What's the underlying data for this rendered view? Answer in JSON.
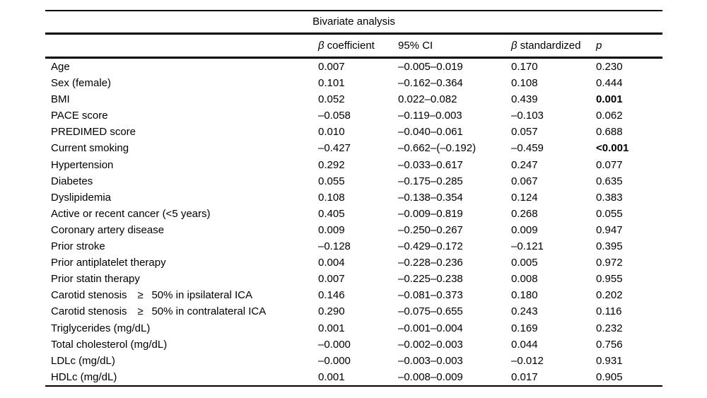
{
  "table": {
    "title": "Bivariate analysis",
    "columns": [
      {
        "symbol": "β",
        "text": "coefficient"
      },
      {
        "symbol": "",
        "text": "95% CI"
      },
      {
        "symbol": "β",
        "text": "standardized"
      },
      {
        "symbol": "p",
        "text": ""
      }
    ],
    "rows": [
      {
        "label": "Age",
        "beta": "0.007",
        "ci": "–0.005–0.019",
        "std": "0.170",
        "p": "0.230",
        "p_bold": false
      },
      {
        "label": "Sex (female)",
        "beta": "0.101",
        "ci": "–0.162–0.364",
        "std": "0.108",
        "p": "0.444",
        "p_bold": false
      },
      {
        "label": "BMI",
        "beta": "0.052",
        "ci": "0.022–0.082",
        "std": "0.439",
        "p": "0.001",
        "p_bold": true
      },
      {
        "label": "PACE score",
        "beta": "–0.058",
        "ci": "–0.119–0.003",
        "std": "–0.103",
        "p": "0.062",
        "p_bold": false
      },
      {
        "label": "PREDIMED score",
        "beta": "0.010",
        "ci": "–0.040–0.061",
        "std": "0.057",
        "p": "0.688",
        "p_bold": false
      },
      {
        "label": "Current smoking",
        "beta": "–0.427",
        "ci": "–0.662–(–0.192)",
        "std": "–0.459",
        "p": "<0.001",
        "p_bold": true
      },
      {
        "label": "Hypertension",
        "beta": "0.292",
        "ci": "–0.033–0.617",
        "std": "0.247",
        "p": "0.077",
        "p_bold": false
      },
      {
        "label": "Diabetes",
        "beta": "0.055",
        "ci": "–0.175–0.285",
        "std": "0.067",
        "p": "0.635",
        "p_bold": false
      },
      {
        "label": "Dyslipidemia",
        "beta": "0.108",
        "ci": "–0.138–0.354",
        "std": "0.124",
        "p": "0.383",
        "p_bold": false
      },
      {
        "label": "Active or recent cancer (<5 years)",
        "beta": "0.405",
        "ci": "–0.009–0.819",
        "std": "0.268",
        "p": "0.055",
        "p_bold": false
      },
      {
        "label": "Coronary artery disease",
        "beta": "0.009",
        "ci": "–0.250–0.267",
        "std": "0.009",
        "p": "0.947",
        "p_bold": false
      },
      {
        "label": "Prior stroke",
        "beta": "–0.128",
        "ci": "–0.429–0.172",
        "std": "–0.121",
        "p": "0.395",
        "p_bold": false
      },
      {
        "label": "Prior antiplatelet therapy",
        "beta": "0.004",
        "ci": "–0.228–0.236",
        "std": "0.005",
        "p": "0.972",
        "p_bold": false
      },
      {
        "label": "Prior statin therapy",
        "beta": "0.007",
        "ci": "–0.225–0.238",
        "std": "0.008",
        "p": "0.955",
        "p_bold": false
      },
      {
        "label": "Carotid stenosis ≥  50% in ipsilateral ICA",
        "beta": "0.146",
        "ci": "–0.081–0.373",
        "std": "0.180",
        "p": "0.202",
        "p_bold": false
      },
      {
        "label": "Carotid stenosis ≥  50% in contralateral ICA",
        "beta": "0.290",
        "ci": "–0.075–0.655",
        "std": "0.243",
        "p": "0.116",
        "p_bold": false
      },
      {
        "label": "Triglycerides (mg/dL)",
        "beta": "0.001",
        "ci": "–0.001–0.004",
        "std": "0.169",
        "p": "0.232",
        "p_bold": false
      },
      {
        "label": "Total cholesterol (mg/dL)",
        "beta": "–0.000",
        "ci": "–0.002–0.003",
        "std": "0.044",
        "p": "0.756",
        "p_bold": false
      },
      {
        "label": "LDLc (mg/dL)",
        "beta": "–0.000",
        "ci": "–0.003–0.003",
        "std": "–0.012",
        "p": "0.931",
        "p_bold": false
      },
      {
        "label": "HDLc (mg/dL)",
        "beta": "0.001",
        "ci": "–0.008–0.009",
        "std": "0.017",
        "p": "0.905",
        "p_bold": false
      }
    ]
  },
  "colors": {
    "text": "#000000",
    "background": "#ffffff",
    "rule": "#000000"
  }
}
